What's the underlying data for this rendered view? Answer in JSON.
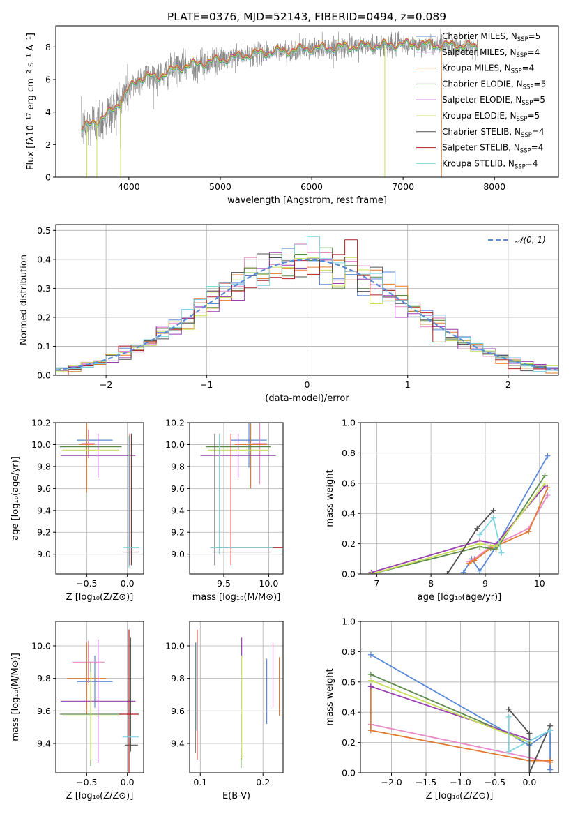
{
  "figure_title": "PLATE=0376, MJD=52143, FIBERID=0494, z=0.089",
  "colors": {
    "Chabrier MILES": "#5b8ad6",
    "Salpeter MILES": "#e88ac8",
    "Kroupa MILES": "#e07a2e",
    "Chabrier ELODIE": "#5c8a4a",
    "Salpeter ELODIE": "#9a3fb0",
    "Kroupa ELODIE": "#c8e05a",
    "Chabrier STELIB": "#505050",
    "Salpeter STELIB": "#b22222",
    "Kroupa STELIB": "#7fd4e0",
    "data": "#808080",
    "normal": "#5b8ad6"
  },
  "legend": [
    {
      "model": "Chabrier MILES",
      "label": "Chabrier MILES, N",
      "sub": "SSP",
      "suffix": "=5"
    },
    {
      "model": "Salpeter MILES",
      "label": "Salpeter MILES, N",
      "sub": "SSP",
      "suffix": "=4"
    },
    {
      "model": "Kroupa MILES",
      "label": "Kroupa MILES, N",
      "sub": "SSP",
      "suffix": "=4"
    },
    {
      "model": "Chabrier ELODIE",
      "label": "Chabrier ELODIE, N",
      "sub": "SSP",
      "suffix": "=5"
    },
    {
      "model": "Salpeter ELODIE",
      "label": "Salpeter ELODIE, N",
      "sub": "SSP",
      "suffix": "=5"
    },
    {
      "model": "Kroupa ELODIE",
      "label": "Kroupa ELODIE, N",
      "sub": "SSP",
      "suffix": "=5"
    },
    {
      "model": "Chabrier STELIB",
      "label": "Chabrier STELIB, N",
      "sub": "SSP",
      "suffix": "=4"
    },
    {
      "model": "Salpeter STELIB",
      "label": "Salpeter STELIB, N",
      "sub": "SSP",
      "suffix": "=4"
    },
    {
      "model": "Kroupa STELIB",
      "label": "Kroupa STELIB, N",
      "sub": "SSP",
      "suffix": "=4"
    }
  ],
  "chart_data": [
    {
      "id": "spectrum",
      "type": "line",
      "xlabel": "wavelength [Angstrom, rest frame]",
      "ylabel": "Flux [fλ10⁻¹⁷ erg cm⁻² s⁻¹ A⁻¹]",
      "xlim": [
        3200,
        8700
      ],
      "ylim": [
        0,
        9.3
      ],
      "xticks": [
        4000,
        5000,
        6000,
        7000,
        8000
      ],
      "yticks": [
        0,
        2,
        4,
        6,
        8
      ],
      "legend_position": "top-right",
      "continuum": {
        "x": [
          3500,
          3600,
          3700,
          3800,
          3900,
          4000,
          4100,
          4200,
          4300,
          4400,
          4500,
          4600,
          4700,
          4800,
          4900,
          5000,
          5200,
          5400,
          5600,
          5800,
          6000,
          6200,
          6400,
          6600,
          6800,
          7000,
          7200,
          7400,
          7600,
          7800
        ],
        "y": [
          3.0,
          3.3,
          3.6,
          4.0,
          4.6,
          5.4,
          6.0,
          6.2,
          6.1,
          6.4,
          6.6,
          6.8,
          6.9,
          7.0,
          7.1,
          7.2,
          7.4,
          7.6,
          7.7,
          7.8,
          7.9,
          7.95,
          8.0,
          8.05,
          8.1,
          8.15,
          8.15,
          8.1,
          8.1,
          8.0
        ]
      },
      "spike_wavelengths": [
        3540,
        3650,
        3910,
        6800,
        7420
      ]
    },
    {
      "id": "residuals",
      "type": "histogram",
      "xlabel": "(data-model)/error",
      "ylabel": "Normed distribution",
      "xlim": [
        -2.5,
        2.5
      ],
      "ylim": [
        0,
        0.52
      ],
      "xticks": [
        -2,
        -1,
        0,
        1,
        2
      ],
      "yticks": [
        0.0,
        0.1,
        0.2,
        0.3,
        0.4,
        0.5
      ],
      "bins": 40,
      "reference_curve": "𝒩(0, 1)",
      "legend_position": "top-right"
    },
    {
      "id": "age_vs_Z",
      "type": "errorbar",
      "xlabel": "Z [log₁₀(Z/Z⊙)]",
      "ylabel": "age  [log₁₀(age/yr)]",
      "xlim": [
        -0.88,
        0.2
      ],
      "ylim": [
        8.82,
        10.2
      ],
      "xticks": [
        -0.5,
        0.0
      ],
      "yticks": [
        9.0,
        9.2,
        9.4,
        9.6,
        9.8,
        10.0,
        10.2
      ],
      "points": [
        {
          "model": "Chabrier MILES",
          "x": -0.4,
          "y": 10.04,
          "xerr": 0.22,
          "yerr": 0.0
        },
        {
          "model": "Salpeter MILES",
          "x": -0.48,
          "y": 10.01,
          "xerr": 0.08,
          "yerr": 0.13
        },
        {
          "model": "Kroupa MILES",
          "x": -0.5,
          "y": 10.0,
          "xerr": 0.09,
          "yerr": 0.44
        },
        {
          "model": "Chabrier ELODIE",
          "x": -0.45,
          "y": 9.98,
          "xerr": 0.38,
          "yerr": 0.0
        },
        {
          "model": "Salpeter ELODIE",
          "x": -0.36,
          "y": 9.9,
          "xerr": 0.46,
          "yerr": 0.2
        },
        {
          "model": "Kroupa ELODIE",
          "x": -0.45,
          "y": 9.95,
          "xerr": 0.35,
          "yerr": 0.0
        },
        {
          "model": "Chabrier STELIB",
          "x": 0.05,
          "y": 9.5,
          "xerr": 0.0,
          "yerr": 0.6
        },
        {
          "model": "Salpeter STELIB",
          "x": 0.03,
          "y": 9.5,
          "xerr": 0.0,
          "yerr": 0.6
        },
        {
          "model": "Kroupa STELIB",
          "x": 0.02,
          "y": 9.48,
          "xerr": 0.0,
          "yerr": 0.6
        },
        {
          "model": "Kroupa STELIB",
          "x": 0.05,
          "y": 9.06,
          "xerr": 0.1,
          "yerr": 0.0
        },
        {
          "model": "Chabrier STELIB",
          "x": 0.04,
          "y": 9.02,
          "xerr": 0.1,
          "yerr": 0.0
        }
      ]
    },
    {
      "id": "age_vs_mass",
      "type": "errorbar",
      "xlabel": "mass [log₁₀(M/M⊙)]",
      "ylabel": "",
      "xlim": [
        9.12,
        10.16
      ],
      "ylim": [
        8.82,
        10.2
      ],
      "xticks": [
        9.5,
        10.0
      ],
      "yticks": [
        9.0,
        9.2,
        9.4,
        9.6,
        9.8,
        10.0,
        10.2
      ],
      "points": [
        {
          "model": "Chabrier MILES",
          "x": 9.78,
          "y": 10.04,
          "xerr": 0.2,
          "yerr": 0.25
        },
        {
          "model": "Salpeter MILES",
          "x": 9.9,
          "y": 10.01,
          "xerr": 0.08,
          "yerr": 0.37
        },
        {
          "model": "Kroupa MILES",
          "x": 9.8,
          "y": 10.0,
          "xerr": 0.18,
          "yerr": 0.4
        },
        {
          "model": "Chabrier ELODIE",
          "x": 9.66,
          "y": 9.98,
          "xerr": 0.36,
          "yerr": 0.0
        },
        {
          "model": "Salpeter ELODIE",
          "x": 9.66,
          "y": 9.9,
          "xerr": 0.42,
          "yerr": 0.2
        },
        {
          "model": "Kroupa ELODIE",
          "x": 9.66,
          "y": 9.95,
          "xerr": 0.34,
          "yerr": 0.0
        },
        {
          "model": "Chabrier STELIB",
          "x": 9.4,
          "y": 9.5,
          "xerr": 0.0,
          "yerr": 0.6
        },
        {
          "model": "Salpeter STELIB",
          "x": 9.58,
          "y": 9.5,
          "xerr": 0.0,
          "yerr": 0.6
        },
        {
          "model": "Kroupa STELIB",
          "x": 9.45,
          "y": 9.55,
          "xerr": 0.0,
          "yerr": 0.55
        },
        {
          "model": "Salpeter STELIB",
          "x": 9.75,
          "y": 9.06,
          "xerr": 0.4,
          "yerr": 0.0
        },
        {
          "model": "Kroupa STELIB",
          "x": 9.7,
          "y": 9.06,
          "xerr": 0.35,
          "yerr": 0.0
        },
        {
          "model": "Chabrier STELIB",
          "x": 9.7,
          "y": 9.02,
          "xerr": 0.33,
          "yerr": 0.0
        }
      ]
    },
    {
      "id": "weight_vs_age",
      "type": "line",
      "xlabel": "age  [log₁₀(age/yr)]",
      "ylabel": "mass weight",
      "xlim": [
        6.7,
        10.35
      ],
      "ylim": [
        0,
        1
      ],
      "xticks": [
        7,
        8,
        9,
        10
      ],
      "yticks": [
        0.0,
        0.2,
        0.4,
        0.6,
        0.8,
        1.0
      ],
      "series": [
        {
          "model": "Chabrier MILES",
          "x": [
            8.6,
            8.75,
            8.9,
            9.2,
            10.15
          ],
          "y": [
            0.01,
            0.1,
            0.02,
            0.18,
            0.78
          ]
        },
        {
          "model": "Salpeter MILES",
          "x": [
            8.7,
            8.8,
            9.1,
            9.8,
            10.15
          ],
          "y": [
            0.08,
            0.1,
            0.18,
            0.3,
            0.52
          ]
        },
        {
          "model": "Kroupa MILES",
          "x": [
            8.7,
            8.8,
            9.1,
            9.8,
            10.15
          ],
          "y": [
            0.07,
            0.09,
            0.17,
            0.28,
            0.57
          ]
        },
        {
          "model": "Chabrier ELODIE",
          "x": [
            6.9,
            8.9,
            9.2,
            10.1
          ],
          "y": [
            0.0,
            0.18,
            0.16,
            0.65
          ]
        },
        {
          "model": "Salpeter ELODIE",
          "x": [
            6.9,
            8.9,
            9.2,
            10.1
          ],
          "y": [
            0.01,
            0.22,
            0.2,
            0.58
          ]
        },
        {
          "model": "Kroupa ELODIE",
          "x": [
            6.9,
            8.9,
            9.2,
            10.1
          ],
          "y": [
            0.0,
            0.2,
            0.18,
            0.6
          ]
        },
        {
          "model": "Chabrier STELIB",
          "x": [
            8.3,
            8.85,
            9.15
          ],
          "y": [
            0.0,
            0.3,
            0.42
          ]
        },
        {
          "model": "Kroupa STELIB",
          "x": [
            8.9,
            9.15,
            9.3
          ],
          "y": [
            0.26,
            0.37,
            0.14
          ]
        }
      ]
    },
    {
      "id": "mass_vs_Z",
      "type": "errorbar",
      "xlabel": "Z [log₁₀(Z/Z⊙)]",
      "ylabel": "mass [log₁₀(M/M⊙)]",
      "xlim": [
        -0.88,
        0.2
      ],
      "ylim": [
        9.22,
        10.15
      ],
      "xticks": [
        -0.5,
        0.0
      ],
      "yticks": [
        9.4,
        9.6,
        9.8,
        10.0
      ],
      "points": [
        {
          "model": "Chabrier MILES",
          "x": -0.4,
          "y": 9.78,
          "xerr": 0.22,
          "yerr": 0.16
        },
        {
          "model": "Salpeter MILES",
          "x": -0.48,
          "y": 9.9,
          "xerr": 0.2,
          "yerr": 0.13
        },
        {
          "model": "Kroupa MILES",
          "x": -0.5,
          "y": 9.8,
          "xerr": 0.24,
          "yerr": 0.22
        },
        {
          "model": "Chabrier ELODIE",
          "x": -0.45,
          "y": 9.58,
          "xerr": 0.38,
          "yerr": 0.32
        },
        {
          "model": "Salpeter ELODIE",
          "x": -0.36,
          "y": 9.66,
          "xerr": 0.46,
          "yerr": 0.38
        },
        {
          "model": "Kroupa ELODIE",
          "x": -0.45,
          "y": 9.57,
          "xerr": 0.35,
          "yerr": 0.27
        },
        {
          "model": "Chabrier STELIB",
          "x": 0.04,
          "y": 9.7,
          "xerr": 0.0,
          "yerr": 0.35
        },
        {
          "model": "Chabrier STELIB",
          "x": 0.05,
          "y": 9.39,
          "xerr": 0.08,
          "yerr": 0.0
        },
        {
          "model": "Salpeter STELIB",
          "x": 0.02,
          "y": 9.58,
          "xerr": 0.12,
          "yerr": 0.52
        },
        {
          "model": "Kroupa STELIB",
          "x": 0.04,
          "y": 9.44,
          "xerr": 0.1,
          "yerr": 0.0
        }
      ]
    },
    {
      "id": "mass_vs_EBV",
      "type": "errorbar",
      "xlabel": "E(B-V)",
      "ylabel": "",
      "xlim": [
        0.083,
        0.232
      ],
      "ylim": [
        9.22,
        10.15
      ],
      "xticks": [
        0.1,
        0.2
      ],
      "yticks": [
        9.4,
        9.6,
        9.8,
        10.0
      ],
      "points": [
        {
          "model": "Chabrier STELIB",
          "x": 0.092,
          "y": 9.68,
          "xerr": 0.0,
          "yerr": 0.34
        },
        {
          "model": "Salpeter STELIB",
          "x": 0.095,
          "y": 9.7,
          "xerr": 0.0,
          "yerr": 0.4
        },
        {
          "model": "Kroupa STELIB",
          "x": 0.094,
          "y": 9.75,
          "xerr": 0.0,
          "yerr": 0.27
        },
        {
          "model": "Salpeter ELODIE",
          "x": 0.166,
          "y": 9.99,
          "xerr": 0.0,
          "yerr": 0.06
        },
        {
          "model": "Kroupa ELODIE",
          "x": 0.166,
          "y": 9.62,
          "xerr": 0.0,
          "yerr": 0.32
        },
        {
          "model": "Chabrier ELODIE",
          "x": 0.165,
          "y": 9.28,
          "xerr": 0.0,
          "yerr": 0.03
        },
        {
          "model": "Chabrier MILES",
          "x": 0.206,
          "y": 9.72,
          "xerr": 0.0,
          "yerr": 0.2
        },
        {
          "model": "Salpeter MILES",
          "x": 0.216,
          "y": 9.82,
          "xerr": 0.0,
          "yerr": 0.2
        },
        {
          "model": "Kroupa MILES",
          "x": 0.226,
          "y": 9.75,
          "xerr": 0.0,
          "yerr": 0.18
        }
      ]
    },
    {
      "id": "weight_vs_Z",
      "type": "line",
      "xlabel": "Z [log₁₀(Z/Z⊙)]",
      "ylabel": "mass weight",
      "xlim": [
        -2.45,
        0.42
      ],
      "ylim": [
        0,
        1
      ],
      "xticks": [
        -2.0,
        -1.5,
        -1.0,
        -0.5,
        0.0
      ],
      "yticks": [
        0.0,
        0.2,
        0.4,
        0.6,
        0.8,
        1.0
      ],
      "series": [
        {
          "model": "Chabrier MILES",
          "x": [
            -2.3,
            0.0,
            0.3,
            0.3
          ],
          "y": [
            0.78,
            0.18,
            0.28,
            0.02
          ]
        },
        {
          "model": "Salpeter MILES",
          "x": [
            -2.3,
            0.0,
            0.3
          ],
          "y": [
            0.32,
            0.1,
            0.07
          ]
        },
        {
          "model": "Kroupa MILES",
          "x": [
            -2.3,
            -2.3,
            0.0,
            0.3,
            0.3
          ],
          "y": [
            0.57,
            0.28,
            0.08,
            0.08,
            0.07
          ]
        },
        {
          "model": "Chabrier ELODIE",
          "x": [
            -2.3,
            0.0
          ],
          "y": [
            0.65,
            0.2
          ]
        },
        {
          "model": "Salpeter ELODIE",
          "x": [
            -2.3,
            0.0
          ],
          "y": [
            0.57,
            0.22
          ]
        },
        {
          "model": "Kroupa ELODIE",
          "x": [
            -2.3,
            0.0
          ],
          "y": [
            0.61,
            0.2
          ]
        },
        {
          "model": "Chabrier STELIB",
          "x": [
            -0.3,
            0.0,
            0.0,
            0.3
          ],
          "y": [
            0.42,
            0.26,
            0.0,
            0.31
          ]
        },
        {
          "model": "Kroupa STELIB",
          "x": [
            -0.3,
            -0.3,
            0.3
          ],
          "y": [
            0.37,
            0.14,
            0.28
          ]
        }
      ]
    }
  ]
}
